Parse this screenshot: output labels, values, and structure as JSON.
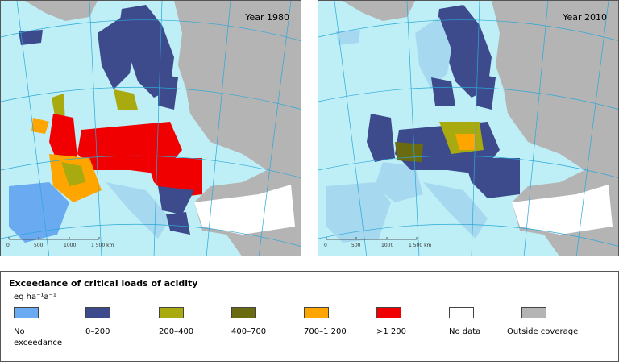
{
  "maps": [
    {
      "year_label": "Year 1980",
      "scale": [
        "0",
        "500",
        "1000",
        "1 500 km"
      ]
    },
    {
      "year_label": "Year 2010",
      "scale": [
        "0",
        "500",
        "1000",
        "1 500 km"
      ]
    }
  ],
  "legend": {
    "title": "Exceedance of critical loads of acidity",
    "unit": "eq ha⁻¹a⁻¹",
    "classes": [
      {
        "label": "No\nexceedance",
        "color": "#6aaaf0"
      },
      {
        "label": "0–200",
        "color": "#3d4a8c"
      },
      {
        "label": "200–400",
        "color": "#a8aa10"
      },
      {
        "label": "400–700",
        "color": "#6a6a10"
      },
      {
        "label": "700–1 200",
        "color": "#ffa500"
      },
      {
        "label": ">1 200",
        "color": "#f00000"
      },
      {
        "label": "No data",
        "color": "#ffffff"
      },
      {
        "label": "Outside coverage",
        "color": "#b4b4b4"
      }
    ]
  },
  "colors": {
    "sea": "#bfeff6",
    "land_covered": "#a6d8f0",
    "outside": "#b4b4b4",
    "graticule": "#2aa8d8",
    "border": "#555555"
  }
}
